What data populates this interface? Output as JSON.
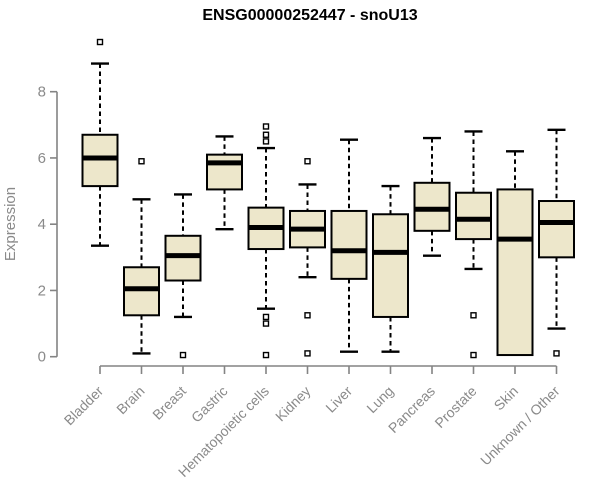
{
  "chart_data": {
    "type": "box",
    "title": "ENSG00000252447 - snoU13",
    "xlabel": "",
    "ylabel": "Expression",
    "ylim": [
      0,
      9.6
    ],
    "yticks": [
      0,
      2,
      4,
      6,
      8
    ],
    "grid": false,
    "legend": "none",
    "categories": [
      "Bladder",
      "Brain",
      "Breast",
      "Gastric",
      "Hematopoietic cells",
      "Kidney",
      "Liver",
      "Lung",
      "Pancreas",
      "Prostate",
      "Skin",
      "Unknown / Other"
    ],
    "series": [
      {
        "name": "Bladder",
        "low": 3.35,
        "q1": 5.15,
        "median": 6.0,
        "q3": 6.7,
        "high": 8.85,
        "outliers": [
          9.5
        ]
      },
      {
        "name": "Brain",
        "low": 0.1,
        "q1": 1.25,
        "median": 2.05,
        "q3": 2.7,
        "high": 4.75,
        "outliers": [
          5.9
        ]
      },
      {
        "name": "Breast",
        "low": 1.2,
        "q1": 2.3,
        "median": 3.05,
        "q3": 3.65,
        "high": 4.9,
        "outliers": [
          0.05
        ]
      },
      {
        "name": "Gastric",
        "low": 3.85,
        "q1": 5.05,
        "median": 5.85,
        "q3": 6.1,
        "high": 6.65,
        "outliers": []
      },
      {
        "name": "Hematopoietic cells",
        "low": 1.45,
        "q1": 3.25,
        "median": 3.9,
        "q3": 4.5,
        "high": 6.3,
        "outliers": [
          6.95,
          6.7,
          6.5,
          1.2,
          1.0,
          0.05
        ]
      },
      {
        "name": "Kidney",
        "low": 2.4,
        "q1": 3.3,
        "median": 3.85,
        "q3": 4.4,
        "high": 5.2,
        "outliers": [
          5.9,
          1.25,
          0.1
        ]
      },
      {
        "name": "Liver",
        "low": 0.15,
        "q1": 2.35,
        "median": 3.2,
        "q3": 4.4,
        "high": 6.55,
        "outliers": []
      },
      {
        "name": "Lung",
        "low": 0.15,
        "q1": 1.2,
        "median": 3.15,
        "q3": 4.3,
        "high": 5.15,
        "outliers": []
      },
      {
        "name": "Pancreas",
        "low": 3.05,
        "q1": 3.8,
        "median": 4.45,
        "q3": 5.25,
        "high": 6.6,
        "outliers": []
      },
      {
        "name": "Prostate",
        "low": 2.65,
        "q1": 3.55,
        "median": 4.15,
        "q3": 4.95,
        "high": 6.8,
        "outliers": [
          1.25,
          0.05
        ]
      },
      {
        "name": "Skin",
        "low": 0.05,
        "q1": 0.05,
        "median": 3.55,
        "q3": 5.05,
        "high": 6.2,
        "outliers": []
      },
      {
        "name": "Unknown / Other",
        "low": 0.85,
        "q1": 3.0,
        "median": 4.05,
        "q3": 4.7,
        "high": 6.85,
        "outliers": [
          0.1
        ]
      }
    ]
  },
  "colors": {
    "box_fill": "#EDE7CB",
    "box_stroke": "#000000",
    "median": "#000000",
    "axis": "#848484",
    "tick_text": "#8a8a8a",
    "title_text": "#000000",
    "background": "#ffffff"
  }
}
